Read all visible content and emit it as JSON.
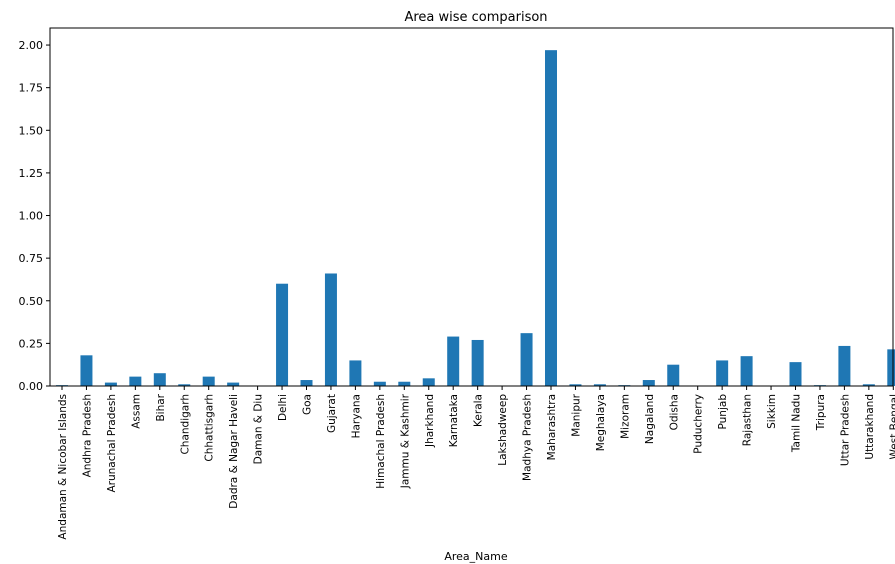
{
  "chart_data": {
    "type": "bar",
    "title": "Area wise comparison",
    "xlabel": "Area_Name",
    "ylabel": "",
    "ylim": [
      0,
      2.1
    ],
    "yticks": [
      "0.00",
      "0.25",
      "0.50",
      "0.75",
      "1.00",
      "1.25",
      "1.50",
      "1.75",
      "2.00"
    ],
    "color": "#1f77b4",
    "grid": false,
    "categories": [
      "Andaman & Nicobar Islands",
      "Andhra Pradesh",
      "Arunachal Pradesh",
      "Assam",
      "Bihar",
      "Chandigarh",
      "Chhattisgarh",
      "Dadra & Nagar Haveli",
      "Daman & Diu",
      "Delhi",
      "Goa",
      "Gujarat",
      "Haryana",
      "Himachal Pradesh",
      "Jammu & Kashmir",
      "Jharkhand",
      "Karnataka",
      "Kerala",
      "Lakshadweep",
      "Madhya Pradesh",
      "Maharashtra",
      "Manipur",
      "Meghalaya",
      "Mizoram",
      "Nagaland",
      "Odisha",
      "Puducherry",
      "Punjab",
      "Rajasthan",
      "Sikkim",
      "Tamil Nadu",
      "Tripura",
      "Uttar Pradesh",
      "Uttarakhand",
      "West Bengal"
    ],
    "values": [
      0.005,
      0.18,
      0.02,
      0.055,
      0.075,
      0.01,
      0.055,
      0.02,
      0.0,
      0.6,
      0.035,
      0.66,
      0.15,
      0.025,
      0.025,
      0.045,
      0.29,
      0.27,
      0.0,
      0.31,
      1.97,
      0.01,
      0.01,
      0.005,
      0.035,
      0.125,
      0.0,
      0.15,
      0.175,
      0.0,
      0.14,
      0.005,
      0.235,
      0.01,
      0.215
    ]
  }
}
